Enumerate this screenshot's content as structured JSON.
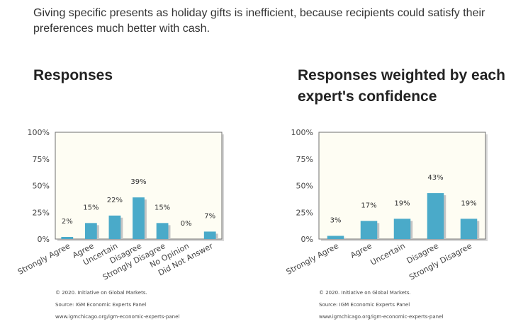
{
  "statement": "Giving specific presents as holiday gifts is inefficient, because recipients could satisfy their preferences much better with cash.",
  "colors": {
    "bar": "#4aaac9",
    "bar_shadow": "#c4c4c4",
    "plot_bg": "#fefdf3",
    "frame": "#6f6f6f"
  },
  "chart_data": [
    {
      "type": "bar",
      "title": "Responses",
      "categories": [
        "Strongly Agree",
        "Agree",
        "Uncertain",
        "Disagree",
        "Strongly Disagree",
        "No Opinion",
        "Did Not Answer"
      ],
      "values": [
        2,
        15,
        22,
        39,
        15,
        0,
        7
      ],
      "value_labels": [
        "2%",
        "15%",
        "22%",
        "39%",
        "15%",
        "0%",
        "7%"
      ],
      "yticks": [
        "0%",
        "25%",
        "50%",
        "75%",
        "100%"
      ],
      "ylim": [
        0,
        100
      ],
      "grid": false,
      "legend": "none"
    },
    {
      "type": "bar",
      "title": "Responses weighted by each expert's confidence",
      "categories": [
        "Strongly Agree",
        "Agree",
        "Uncertain",
        "Disagree",
        "Strongly Disagree"
      ],
      "values": [
        3,
        17,
        19,
        43,
        19
      ],
      "value_labels": [
        "3%",
        "17%",
        "19%",
        "43%",
        "19%"
      ],
      "yticks": [
        "0%",
        "25%",
        "50%",
        "75%",
        "100%"
      ],
      "ylim": [
        0,
        100
      ],
      "grid": false,
      "legend": "none"
    }
  ],
  "footer": {
    "copyright": "© 2020. Initiative on Global Markets.",
    "source": "Source: IGM Economic Experts Panel",
    "url": "www.igmchicago.org/igm-economic-experts-panel"
  }
}
